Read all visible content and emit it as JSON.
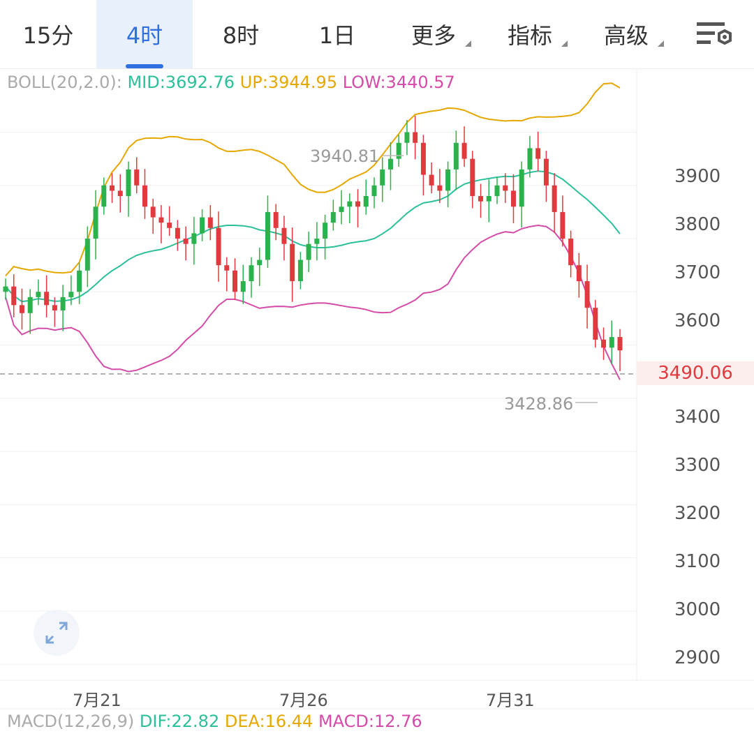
{
  "toolbar": {
    "tabs": [
      {
        "label": "15分",
        "active": false
      },
      {
        "label": "4时",
        "active": true
      },
      {
        "label": "8时",
        "active": false
      },
      {
        "label": "1日",
        "active": false
      },
      {
        "label": "更多",
        "active": false,
        "dropdown": true
      },
      {
        "label": "指标",
        "active": false,
        "dropdown": true
      },
      {
        "label": "高级",
        "active": false,
        "dropdown": true
      }
    ],
    "settings_icon": "chart-settings-icon"
  },
  "boll": {
    "name": "BOLL(20,2.0):",
    "mid": "MID:3692.76",
    "up": "UP:3944.95",
    "low": "LOW:3440.57"
  },
  "macd": {
    "name": "MACD(12,26,9)",
    "dif": "DIF:22.82",
    "dea": "DEA:16.44",
    "macd": "MACD:12.76"
  },
  "price_axis": [
    "3900",
    "3800",
    "3700",
    "3600",
    "3400",
    "3300",
    "3200",
    "3100",
    "3000",
    "2900"
  ],
  "time_axis": [
    "7月21",
    "7月26",
    "7月31"
  ],
  "current_price": "3490.06",
  "annotations": {
    "high": "3940.81",
    "low": "3428.86"
  },
  "colors": {
    "up": "#2bb24c",
    "down": "#e0393e",
    "accent": "#2f6fe0",
    "mid": "#2bbf9a",
    "upper": "#e6a700",
    "lower": "#d44ba8"
  },
  "chart_data": {
    "type": "candlestick",
    "ylim": [
      2870,
      4020
    ],
    "close_series": [
      3610,
      3575,
      3560,
      3590,
      3600,
      3575,
      3565,
      3590,
      3600,
      3640,
      3700,
      3760,
      3800,
      3790,
      3780,
      3830,
      3800,
      3760,
      3740,
      3730,
      3720,
      3700,
      3690,
      3710,
      3740,
      3720,
      3650,
      3640,
      3600,
      3620,
      3650,
      3660,
      3750,
      3720,
      3690,
      3620,
      3660,
      3690,
      3700,
      3730,
      3750,
      3760,
      3770,
      3760,
      3780,
      3800,
      3830,
      3850,
      3880,
      3900,
      3880,
      3820,
      3800,
      3790,
      3830,
      3880,
      3850,
      3780,
      3770,
      3780,
      3800,
      3790,
      3760,
      3830,
      3870,
      3850,
      3800,
      3750,
      3700,
      3650,
      3620,
      3570,
      3510,
      3495,
      3515,
      3490
    ]
  }
}
